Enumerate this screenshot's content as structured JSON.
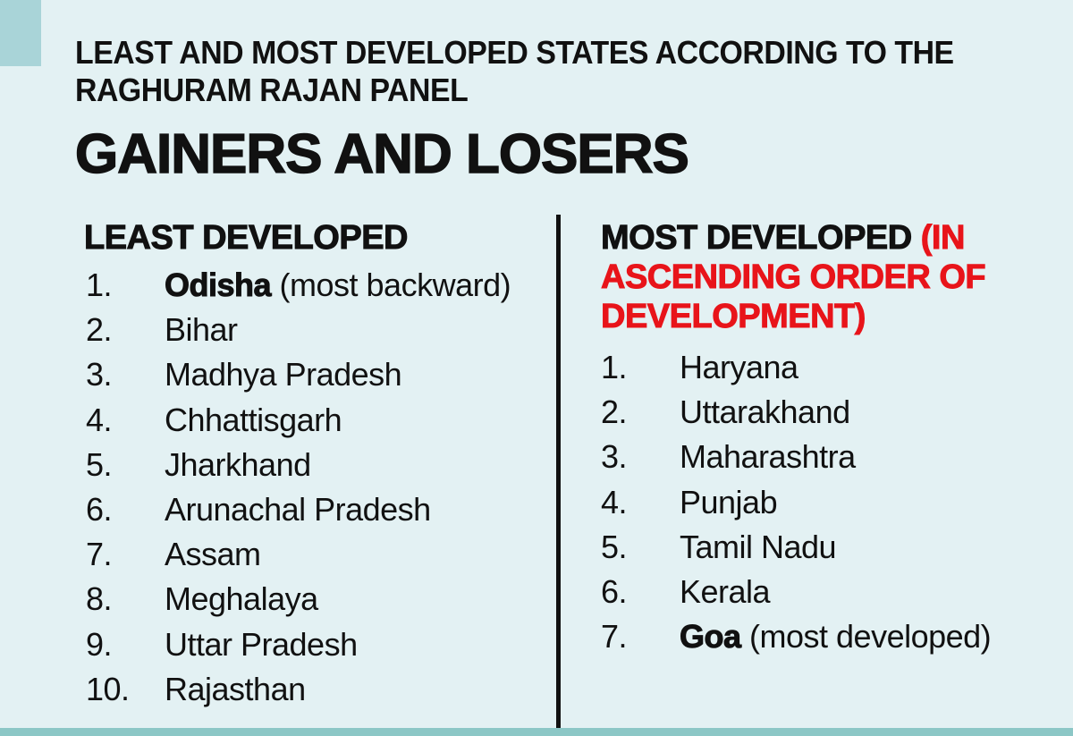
{
  "header": {
    "kicker": "LEAST AND MOST DEVELOPED STATES ACCORDING TO THE RAGHURAM RAJAN PANEL",
    "headline": "GAINERS AND LOSERS"
  },
  "colors": {
    "background": "#e3f1f3",
    "accent": "#a9d4d8",
    "strip": "#8cc7c6",
    "highlight_red": "#e8141a",
    "text": "#111111"
  },
  "least_developed": {
    "heading": "LEAST DEVELOPED",
    "items": [
      {
        "num": "1.",
        "name": "Odisha",
        "note": " (most backward)"
      },
      {
        "num": "2.",
        "name": "Bihar",
        "note": ""
      },
      {
        "num": "3.",
        "name": "Madhya Pradesh",
        "note": ""
      },
      {
        "num": "4.",
        "name": "Chhattisgarh",
        "note": ""
      },
      {
        "num": "5.",
        "name": "Jharkhand",
        "note": ""
      },
      {
        "num": "6.",
        "name": "Arunachal Pradesh",
        "note": ""
      },
      {
        "num": "7.",
        "name": "Assam",
        "note": ""
      },
      {
        "num": "8.",
        "name": "Meghalaya",
        "note": ""
      },
      {
        "num": "9.",
        "name": "Uttar Pradesh",
        "note": ""
      },
      {
        "num": "10.",
        "name": "Rajasthan",
        "note": ""
      }
    ]
  },
  "most_developed": {
    "heading": "MOST DEVELOPED ",
    "heading_note": "(IN ASCENDING ORDER OF DEVELOPMENT)",
    "items": [
      {
        "num": "1.",
        "name": "Haryana",
        "note": ""
      },
      {
        "num": "2.",
        "name": "Uttarakhand",
        "note": ""
      },
      {
        "num": "3.",
        "name": "Maharashtra",
        "note": ""
      },
      {
        "num": "4.",
        "name": "Punjab",
        "note": ""
      },
      {
        "num": "5.",
        "name": "Tamil Nadu",
        "note": ""
      },
      {
        "num": "6.",
        "name": "Kerala",
        "note": ""
      },
      {
        "num": "7.",
        "name": "Goa",
        "note": " (most developed)"
      }
    ]
  }
}
